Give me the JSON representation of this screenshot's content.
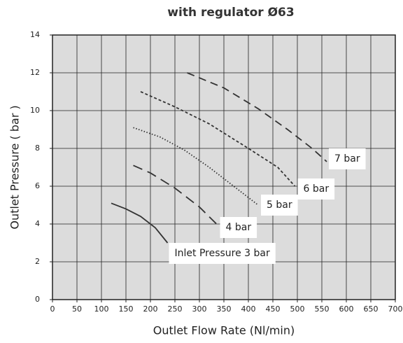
{
  "chart_data": {
    "type": "line",
    "title": "with regulator Ø63",
    "x_label": "Outlet Flow Rate (Nl/min)",
    "y_label": "Outlet Pressure ( bar )",
    "xlim": [
      0,
      700
    ],
    "ylim": [
      0,
      14
    ],
    "xticks": [
      0,
      50,
      100,
      150,
      200,
      250,
      300,
      350,
      400,
      450,
      500,
      550,
      600,
      650,
      700
    ],
    "yticks": [
      0,
      2,
      4,
      6,
      8,
      10,
      12,
      14
    ],
    "grid": true,
    "series": [
      {
        "name": "Inlet Pressure 3 bar",
        "color": "#333333",
        "style": "solid",
        "x": [
          120,
          150,
          180,
          210,
          235
        ],
        "values": [
          5.1,
          4.8,
          4.4,
          3.8,
          3.0
        ]
      },
      {
        "name": "4 bar",
        "color": "#333333",
        "style": "longdash",
        "x": [
          165,
          200,
          250,
          300,
          335
        ],
        "values": [
          7.1,
          6.7,
          5.9,
          4.9,
          4.0
        ]
      },
      {
        "name": "5 bar",
        "color": "#333333",
        "style": "dotted",
        "x": [
          165,
          220,
          270,
          320,
          370,
          420
        ],
        "values": [
          9.1,
          8.6,
          7.9,
          7.0,
          6.0,
          5.0
        ]
      },
      {
        "name": "6 bar",
        "color": "#333333",
        "style": "shortdash",
        "x": [
          180,
          250,
          320,
          400,
          460,
          495
        ],
        "values": [
          11.0,
          10.2,
          9.3,
          8.0,
          7.0,
          6.0
        ]
      },
      {
        "name": "7 bar",
        "color": "#333333",
        "style": "dashed",
        "x": [
          275,
          350,
          420,
          480,
          530,
          560
        ],
        "values": [
          12.0,
          11.2,
          10.1,
          9.0,
          8.0,
          7.3
        ]
      }
    ]
  }
}
